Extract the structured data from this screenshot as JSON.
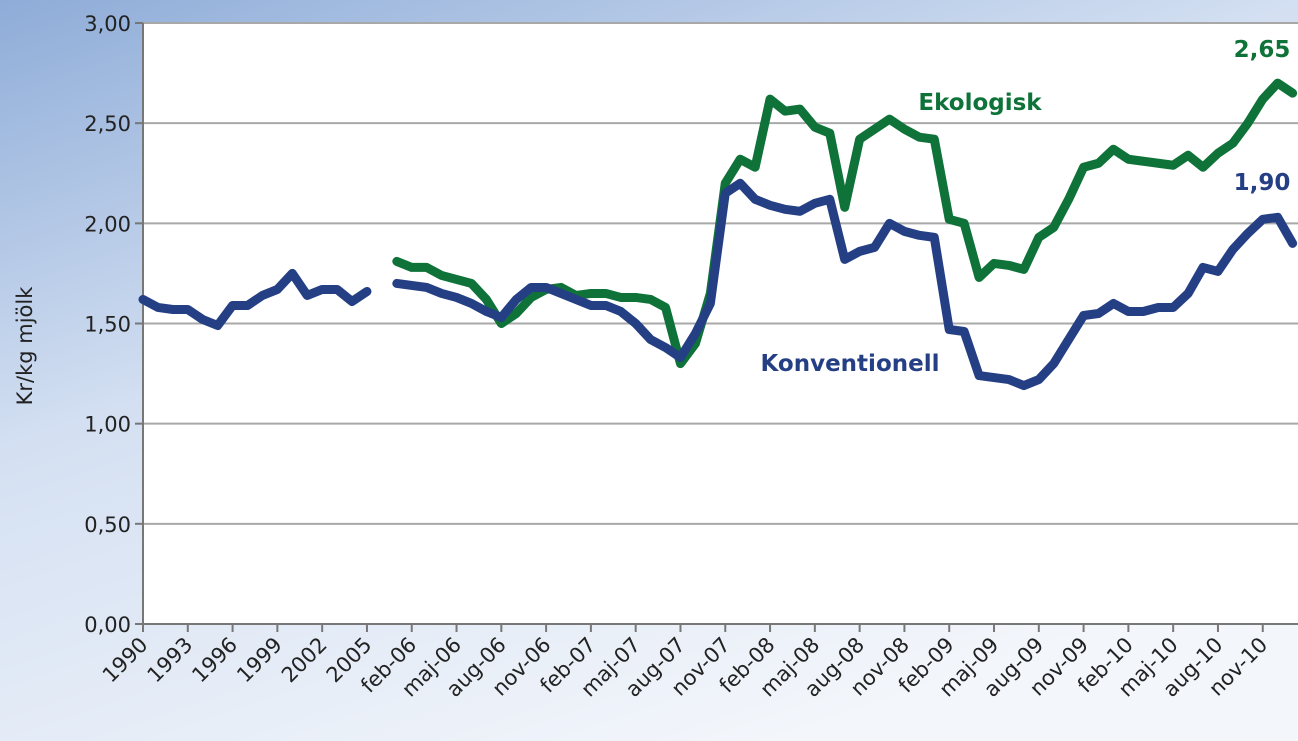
{
  "chart_data": {
    "type": "line",
    "ylabel": "Kr/kg mjölk",
    "categories": [
      "1990",
      null,
      null,
      "1993",
      null,
      null,
      "1996",
      null,
      null,
      "1999",
      null,
      null,
      "2002",
      null,
      null,
      "2005",
      null,
      null,
      "feb-06",
      null,
      null,
      "maj-06",
      null,
      null,
      "aug-06",
      null,
      null,
      "nov-06",
      null,
      null,
      "feb-07",
      null,
      null,
      "maj-07",
      null,
      null,
      "aug-07",
      null,
      null,
      "nov-07",
      null,
      null,
      "feb-08",
      null,
      null,
      "maj-08",
      null,
      null,
      "aug-08",
      null,
      null,
      "nov-08",
      null,
      null,
      "feb-09",
      null,
      null,
      "maj-09",
      null,
      null,
      "aug-09",
      null,
      null,
      "nov-09",
      null,
      null,
      "feb-10",
      null,
      null,
      "maj-10",
      null,
      null,
      "aug-10",
      null,
      null,
      "nov-10",
      null,
      null
    ],
    "series": [
      {
        "name": "Ekologisk",
        "color": "#0f7339",
        "values": [
          null,
          null,
          null,
          null,
          null,
          null,
          null,
          null,
          null,
          null,
          null,
          null,
          null,
          null,
          null,
          null,
          null,
          1.81,
          1.78,
          1.78,
          1.74,
          1.72,
          1.7,
          1.62,
          1.5,
          1.55,
          1.63,
          1.67,
          1.68,
          1.64,
          1.65,
          1.65,
          1.63,
          1.63,
          1.62,
          1.58,
          1.3,
          1.4,
          1.65,
          2.2,
          2.32,
          2.28,
          2.62,
          2.56,
          2.57,
          2.48,
          2.45,
          2.08,
          2.42,
          2.47,
          2.52,
          2.47,
          2.43,
          2.42,
          2.02,
          2.0,
          1.73,
          1.8,
          1.79,
          1.77,
          1.93,
          1.98,
          2.12,
          2.28,
          2.3,
          2.37,
          2.32,
          2.31,
          2.3,
          2.29,
          2.34,
          2.28,
          2.35,
          2.4,
          2.5,
          2.62,
          2.7,
          2.65
        ],
        "value_labels": [
          null,
          null,
          null,
          null,
          null,
          null,
          null,
          null,
          null,
          null,
          null,
          null,
          null,
          null,
          null,
          null,
          null,
          null,
          null,
          null,
          null,
          null,
          null,
          null,
          null,
          null,
          null,
          null,
          null,
          null,
          null,
          null,
          null,
          null,
          null,
          null,
          null,
          null,
          null,
          null,
          null,
          null,
          null,
          null,
          null,
          null,
          null,
          null,
          null,
          null,
          null,
          null,
          null,
          null,
          null,
          null,
          null,
          null,
          null,
          null,
          null,
          null,
          null,
          null,
          null,
          null,
          null,
          null,
          null,
          null,
          null,
          null,
          null,
          null,
          null,
          null,
          null,
          "2,65"
        ]
      },
      {
        "name": "Konventionell",
        "color": "#253f85",
        "values": [
          1.62,
          1.58,
          1.57,
          1.57,
          1.52,
          1.49,
          1.59,
          1.59,
          1.64,
          1.67,
          1.75,
          1.64,
          1.67,
          1.67,
          1.61,
          1.66,
          null,
          1.7,
          1.69,
          1.68,
          1.65,
          1.63,
          1.6,
          1.56,
          1.53,
          1.62,
          1.68,
          1.68,
          1.65,
          1.62,
          1.59,
          1.59,
          1.56,
          1.5,
          1.42,
          1.38,
          1.33,
          1.45,
          1.6,
          2.15,
          2.2,
          2.12,
          2.09,
          2.07,
          2.06,
          2.1,
          2.12,
          1.82,
          1.86,
          1.88,
          2.0,
          1.96,
          1.94,
          1.93,
          1.47,
          1.46,
          1.24,
          1.23,
          1.22,
          1.19,
          1.22,
          1.3,
          1.42,
          1.54,
          1.55,
          1.6,
          1.56,
          1.56,
          1.58,
          1.58,
          1.65,
          1.78,
          1.76,
          1.87,
          1.95,
          2.02,
          2.03,
          1.9
        ],
        "value_labels": [
          null,
          null,
          null,
          null,
          null,
          null,
          null,
          null,
          null,
          null,
          null,
          null,
          null,
          null,
          null,
          null,
          null,
          null,
          null,
          null,
          null,
          null,
          null,
          null,
          null,
          null,
          null,
          null,
          null,
          null,
          null,
          null,
          null,
          null,
          null,
          null,
          null,
          null,
          null,
          null,
          null,
          null,
          null,
          null,
          null,
          null,
          null,
          null,
          null,
          null,
          null,
          null,
          null,
          null,
          null,
          null,
          null,
          null,
          null,
          null,
          null,
          null,
          null,
          null,
          null,
          null,
          null,
          null,
          null,
          null,
          null,
          null,
          null,
          null,
          null,
          null,
          null,
          "1,90"
        ]
      }
    ],
    "ylim": [
      0,
      3
    ],
    "yticks": [
      {
        "value": 0,
        "label": "0,00"
      },
      {
        "value": 0.5,
        "label": "0,50"
      },
      {
        "value": 1,
        "label": "1,00"
      },
      {
        "value": 1.5,
        "label": "1,50"
      },
      {
        "value": 2,
        "label": "2,00"
      },
      {
        "value": 2.5,
        "label": "2,50"
      },
      {
        "value": 3,
        "label": "3,00"
      }
    ],
    "grid": true
  }
}
